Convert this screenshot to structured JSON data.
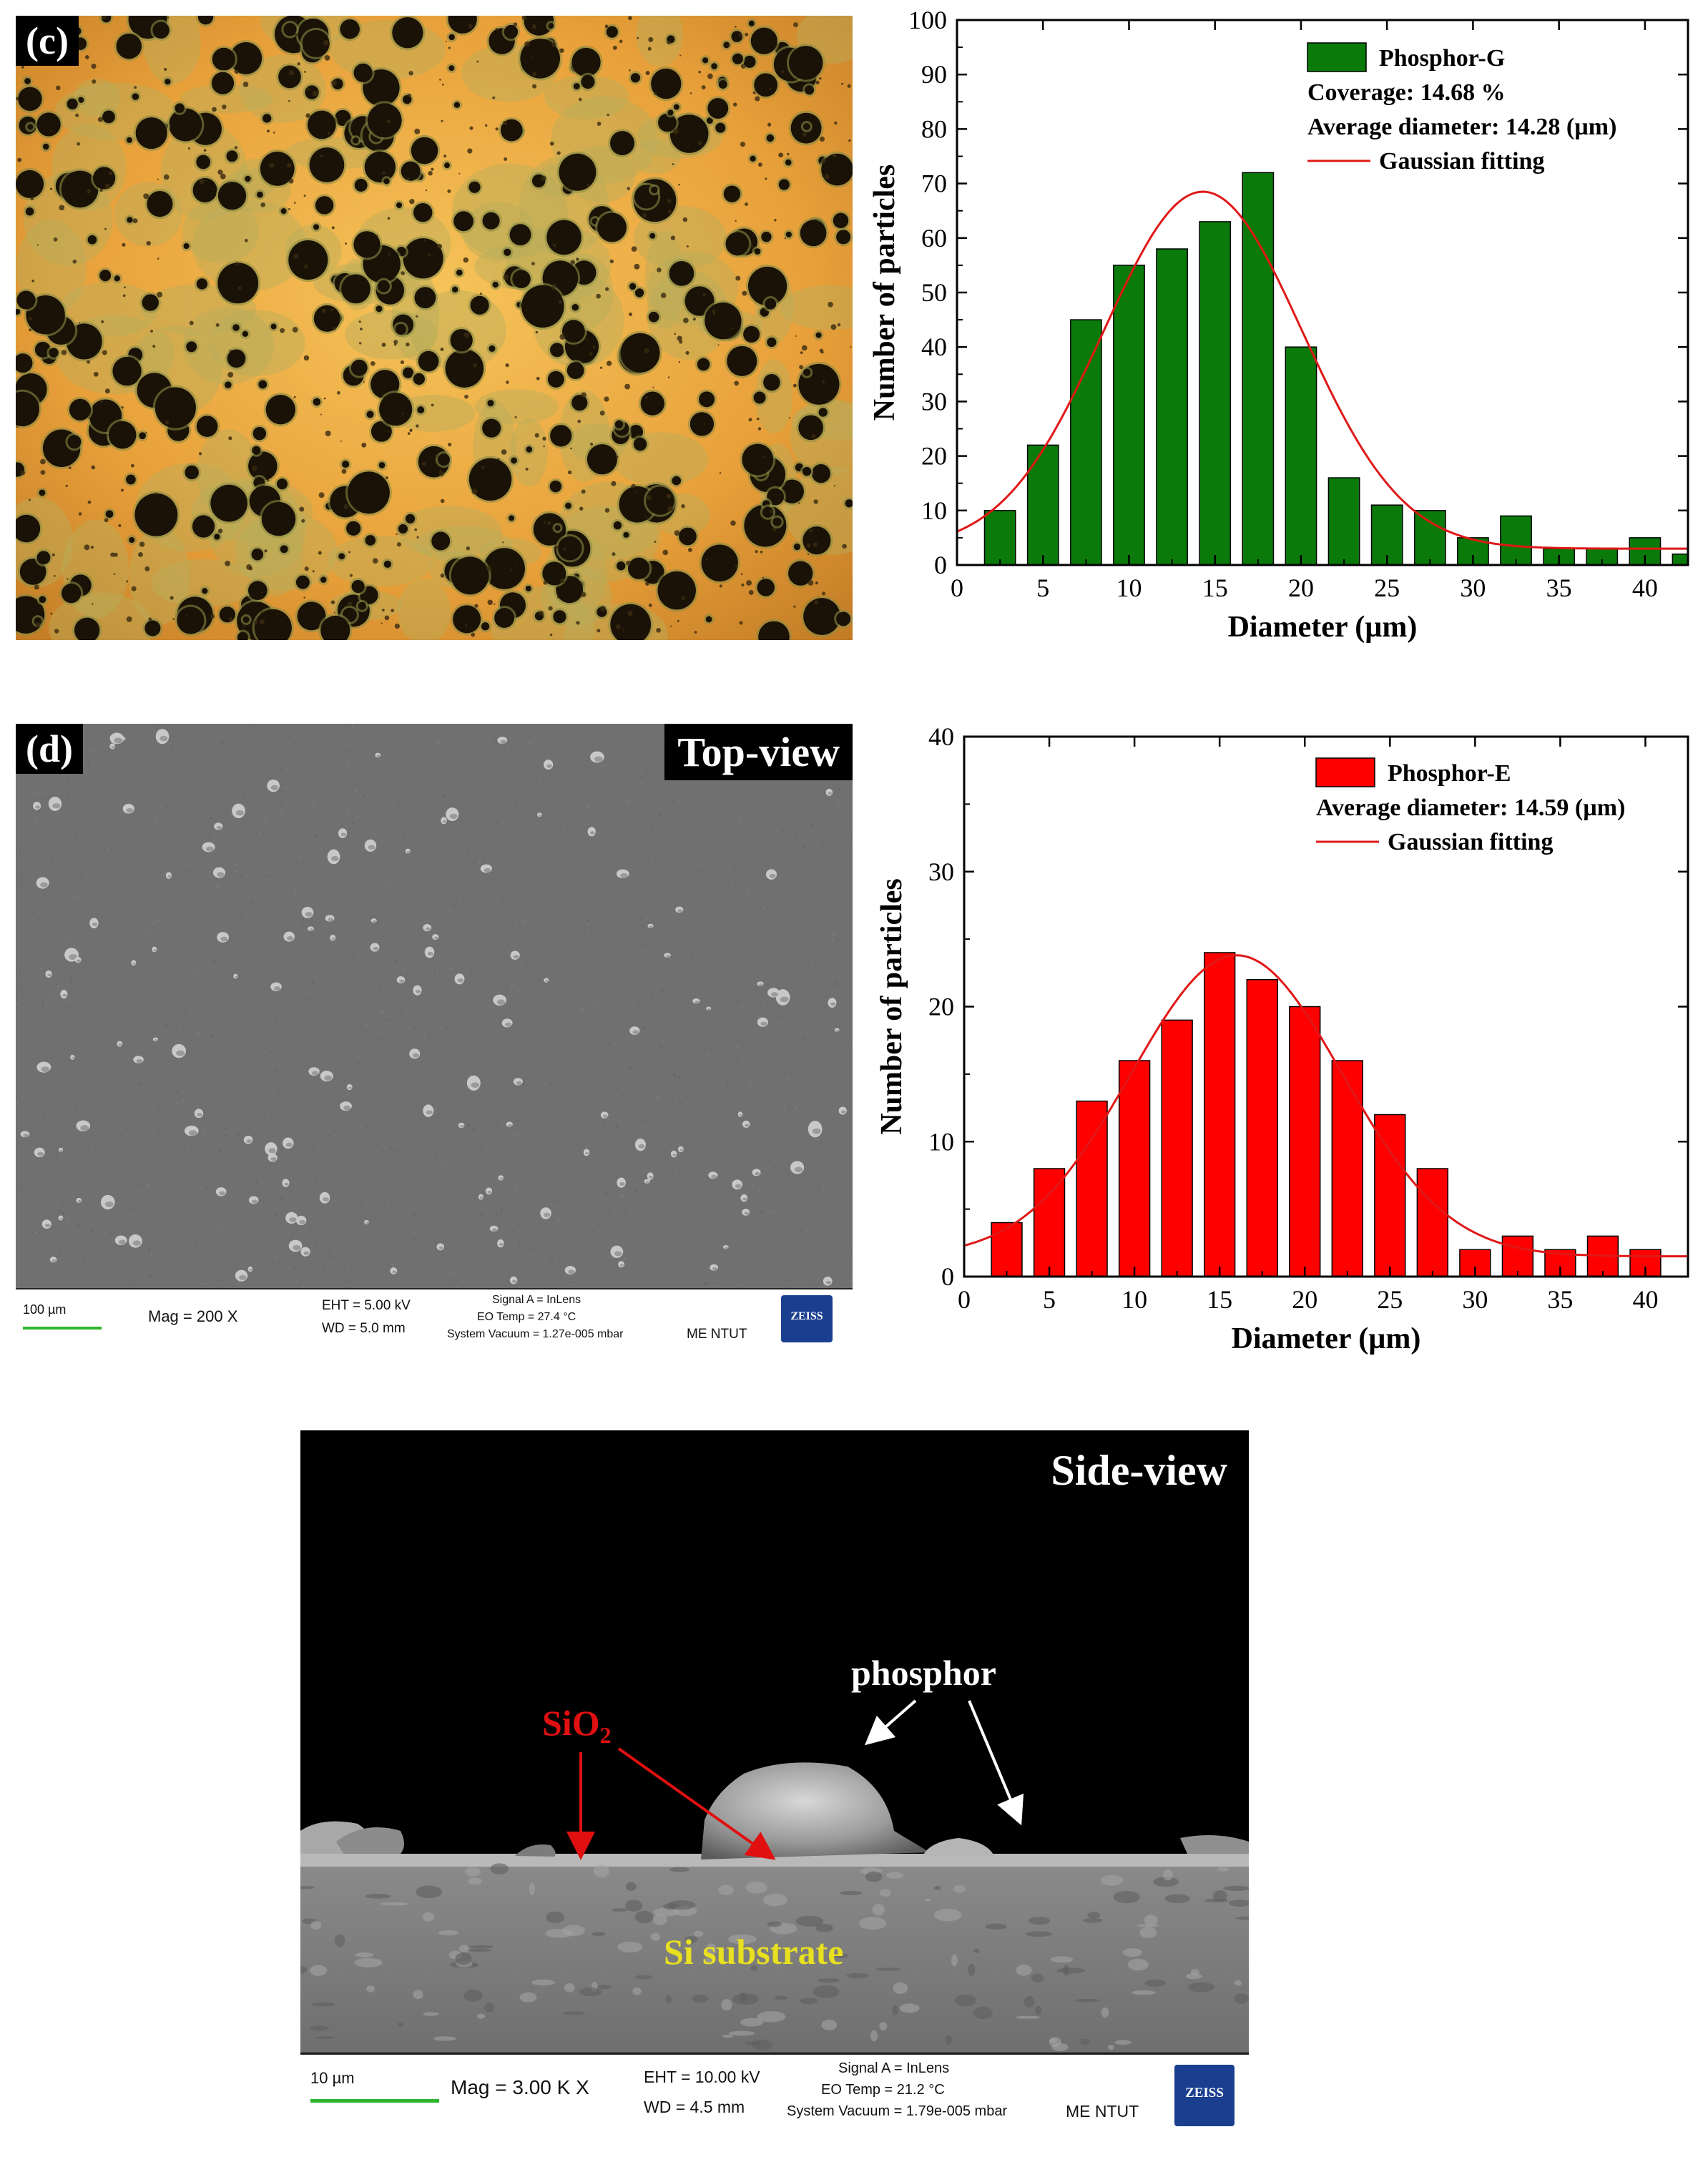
{
  "panels": {
    "c": {
      "label": "(c)"
    },
    "d": {
      "label": "(d)",
      "view_label": "Top-view",
      "info": {
        "scale": "100 µm",
        "mag": "Mag =    200 X",
        "eht": "EHT =  5.00 kV",
        "wd": "WD =  5.0 mm",
        "signal": "Signal A = InLens",
        "eo_temp": "EO Temp =  27.4 °C",
        "vacuum": "System Vacuum = 1.27e-005 mbar",
        "lab": "ME NTUT",
        "logo": "ZEISS"
      }
    },
    "e": {
      "view_label": "Side-view",
      "annotations": {
        "phosphor": "phosphor",
        "sio2": "SiO",
        "sio2_sub": "2",
        "substrate": "Si substrate"
      },
      "colors": {
        "sio2": "#e01010",
        "substrate": "#e8e020"
      },
      "info": {
        "scale": "10 µm",
        "mag": "Mag =    3.00 K X",
        "eht": "EHT = 10.00 kV",
        "wd": "WD =  4.5 mm",
        "signal": "Signal A = InLens",
        "eo_temp": "EO Temp =  21.2 °C",
        "vacuum": "System Vacuum = 1.79e-005 mbar",
        "lab": "ME NTUT",
        "logo": "ZEISS"
      }
    }
  },
  "chart_data": [
    {
      "type": "bar",
      "xlabel": "Diameter (µm)",
      "ylabel": "Number of particles",
      "xlim": [
        0,
        42.5
      ],
      "ylim": [
        0,
        100
      ],
      "xticks": [
        0,
        5,
        10,
        15,
        20,
        25,
        30,
        35,
        40
      ],
      "yticks": [
        0,
        10,
        20,
        30,
        40,
        50,
        60,
        70,
        80,
        90,
        100
      ],
      "bar_color": "#0a7a0a",
      "fit_color": "#e01818",
      "x": [
        2.5,
        5,
        7.5,
        10,
        12.5,
        15,
        17.5,
        20,
        22.5,
        25,
        27.5,
        30,
        32.5,
        35,
        37.5,
        40,
        42.5
      ],
      "values": [
        10,
        22,
        45,
        55,
        58,
        63,
        72,
        40,
        16,
        11,
        10,
        5,
        9,
        3,
        3,
        5,
        2
      ],
      "fit": {
        "baseline": 3,
        "amplitude": 65.5,
        "center": 14.3,
        "sigma": 5.8
      },
      "legend": {
        "position": "top-right",
        "series": "Phosphor-G",
        "lines": [
          "Coverage: 14.68 %",
          "Average diameter: 14.28 (µm)"
        ],
        "fit_label": "Gaussian fitting"
      }
    },
    {
      "type": "bar",
      "xlabel": "Diameter (µm)",
      "ylabel": "Number of particles",
      "xlim": [
        0,
        42.5
      ],
      "ylim": [
        0,
        40
      ],
      "xticks": [
        0,
        5,
        10,
        15,
        20,
        25,
        30,
        35,
        40
      ],
      "yticks": [
        0,
        10,
        20,
        30,
        40
      ],
      "bar_color": "#ff0000",
      "fit_color": "#e01818",
      "x": [
        2.5,
        5,
        7.5,
        10,
        12.5,
        15,
        17.5,
        20,
        22.5,
        25,
        27.5,
        30,
        32.5,
        35,
        37.5,
        40
      ],
      "values": [
        4,
        8,
        13,
        16,
        19,
        24,
        22,
        20,
        16,
        12,
        8,
        2,
        3,
        2,
        3,
        2
      ],
      "fit": {
        "baseline": 1.5,
        "amplitude": 22.3,
        "center": 16,
        "sigma": 6.2
      },
      "legend": {
        "position": "top-right",
        "series": "Phosphor-E",
        "lines": [
          "Average diameter: 14.59 (µm)"
        ],
        "fit_label": "Gaussian fitting"
      }
    }
  ]
}
